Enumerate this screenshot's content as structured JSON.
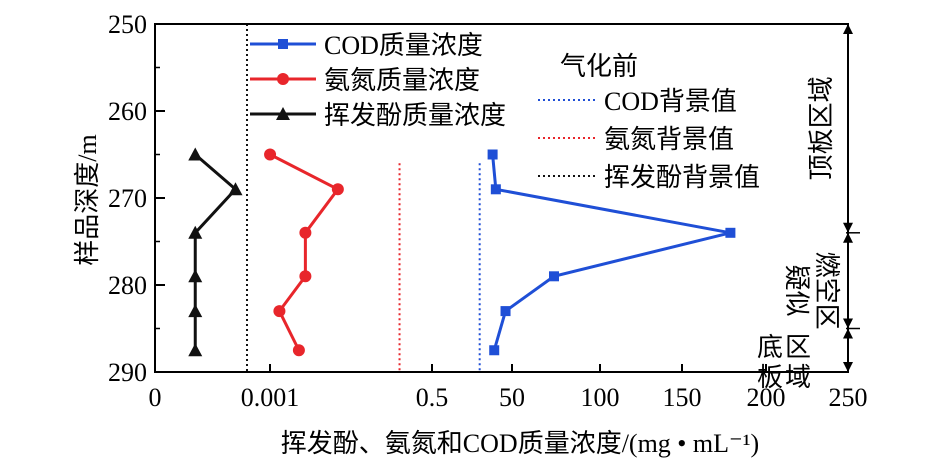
{
  "chart_data": {
    "type": "line",
    "xlabel": "挥发酚、氨氮和COD质量浓度/(mg • mL⁻¹)",
    "ylabel": "样品深度/m",
    "ylim": [
      250,
      290
    ],
    "yticks": [
      250,
      260,
      270,
      280,
      290
    ],
    "xtick_labels": [
      "0",
      "0.001",
      "0.5",
      "50",
      "100",
      "150",
      "200",
      "250"
    ],
    "x_axis_note": "x axis is piecewise: phenol (0–0.002), ammonia nitrogen (around 0.5), COD (50–250)",
    "grid": false,
    "legend_placement": "top-center",
    "legend_title_bg": "气化前",
    "series": [
      {
        "name": "COD质量浓度",
        "color": "#1f4fd6",
        "marker": "square",
        "points": [
          {
            "x": 38,
            "y": 265
          },
          {
            "x": 40,
            "y": 269
          },
          {
            "x": 180,
            "y": 274
          },
          {
            "x": 75,
            "y": 279
          },
          {
            "x": 46,
            "y": 283
          },
          {
            "x": 39,
            "y": 287.5
          }
        ]
      },
      {
        "name": "氨氮质量浓度",
        "color": "#e8262b",
        "marker": "circle",
        "points": [
          {
            "x": 0.0012,
            "y": 265
          },
          {
            "x": 0.21,
            "y": 269
          },
          {
            "x": 0.11,
            "y": 274
          },
          {
            "x": 0.11,
            "y": 279
          },
          {
            "x": 0.03,
            "y": 283
          },
          {
            "x": 0.09,
            "y": 287.5
          }
        ]
      },
      {
        "name": "挥发酚质量浓度",
        "color": "#111111",
        "marker": "triangle",
        "points": [
          {
            "x": 0.00035,
            "y": 265
          },
          {
            "x": 0.0007,
            "y": 269
          },
          {
            "x": 0.00035,
            "y": 274
          },
          {
            "x": 0.00035,
            "y": 279
          },
          {
            "x": 0.00035,
            "y": 283
          },
          {
            "x": 0.00035,
            "y": 287.5
          }
        ]
      }
    ],
    "background_lines": [
      {
        "name": "COD背景值",
        "color": "#1f4fd6",
        "x": 30
      },
      {
        "name": "氨氮背景值",
        "color": "#e8262b",
        "x": 0.4
      },
      {
        "name": "挥发酚背景值",
        "color": "#111111",
        "x": 0.0008
      }
    ],
    "regions": [
      {
        "label": "顶板区域",
        "from": 250,
        "to": 274
      },
      {
        "label": "疑似燃空区",
        "from": 274,
        "to": 285
      },
      {
        "label": "底板区域",
        "from": 285,
        "to": 290
      }
    ]
  }
}
